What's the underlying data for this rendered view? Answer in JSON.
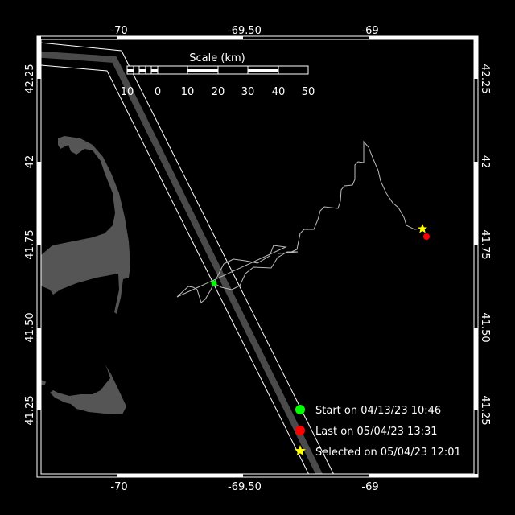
{
  "map": {
    "lon_ticks": [
      {
        "value": -70,
        "label": "-70"
      },
      {
        "value": -69.5,
        "label": "-69.50"
      },
      {
        "value": -69,
        "label": "-69"
      }
    ],
    "lat_ticks": [
      {
        "value": 42.25,
        "label": "42.25"
      },
      {
        "value": 42,
        "label": "42"
      },
      {
        "value": 41.75,
        "label": "41.75"
      },
      {
        "value": 41.5,
        "label": "41.50"
      },
      {
        "value": 41.25,
        "label": "41.25"
      }
    ],
    "colors": {
      "background": "#000000",
      "land": "#555555",
      "track": "#bbbbbb",
      "lane_center": "#4a4a4a",
      "start": "#00ff00",
      "last": "#ff0000",
      "selected": "#ffff00"
    }
  },
  "scale": {
    "title": "Scale (km)",
    "labels": [
      "10",
      "0",
      "10",
      "20",
      "30",
      "40",
      "50"
    ]
  },
  "legend": {
    "start": {
      "label": "Start on 04/13/23 10:46",
      "icon": "green-dot"
    },
    "last": {
      "label": "Last on 05/04/23 13:31",
      "icon": "red-dot"
    },
    "selected": {
      "label": "Selected on 05/04/23 12:01",
      "icon": "yellow-star"
    }
  }
}
